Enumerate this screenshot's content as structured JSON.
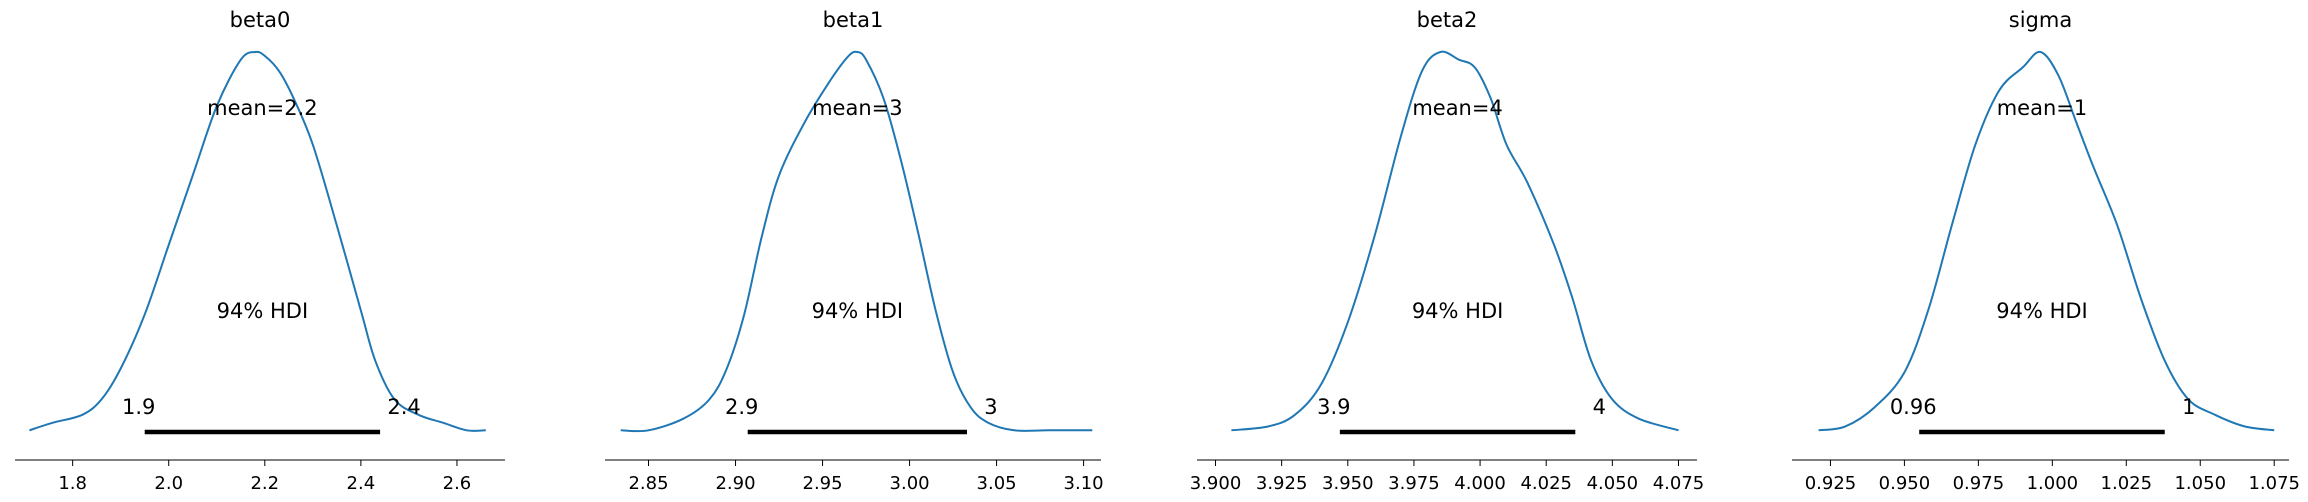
{
  "chart_data": [
    {
      "type": "density",
      "title": "beta0",
      "mean_label": "mean=2.2",
      "hdi_label": "94% HDI",
      "hdi_low_label": "1.9",
      "hdi_high_label": "2.4",
      "hdi": [
        1.95,
        2.44
      ],
      "xlim": [
        1.68,
        2.7
      ],
      "xticks": [
        1.8,
        2.0,
        2.2,
        2.4,
        2.6
      ],
      "xtick_labels": [
        "1.8",
        "2.0",
        "2.2",
        "2.4",
        "2.6"
      ],
      "density": {
        "x": [
          1.71,
          1.76,
          1.82,
          1.86,
          1.9,
          1.95,
          2.0,
          2.05,
          2.1,
          2.15,
          2.18,
          2.2,
          2.23,
          2.26,
          2.3,
          2.35,
          2.4,
          2.43,
          2.47,
          2.52,
          2.57,
          2.62,
          2.66
        ],
        "y": [
          0.02,
          0.04,
          0.06,
          0.1,
          0.18,
          0.32,
          0.5,
          0.68,
          0.86,
          0.98,
          1.0,
          0.99,
          0.95,
          0.88,
          0.76,
          0.55,
          0.33,
          0.2,
          0.1,
          0.06,
          0.04,
          0.02,
          0.02
        ]
      }
    },
    {
      "type": "density",
      "title": "beta1",
      "mean_label": "mean=3",
      "hdi_label": "94% HDI",
      "hdi_low_label": "2.9",
      "hdi_high_label": "3",
      "hdi": [
        2.907,
        3.033
      ],
      "xlim": [
        2.825,
        3.11
      ],
      "xticks": [
        2.85,
        2.9,
        2.95,
        3.0,
        3.05,
        3.1
      ],
      "xtick_labels": [
        "2.85",
        "2.90",
        "2.95",
        "3.00",
        "3.05",
        "3.10"
      ],
      "density": {
        "x": [
          2.834,
          2.85,
          2.87,
          2.885,
          2.895,
          2.905,
          2.915,
          2.925,
          2.94,
          2.955,
          2.965,
          2.97,
          2.975,
          2.985,
          2.995,
          3.005,
          3.015,
          3.025,
          3.035,
          3.045,
          3.06,
          3.08,
          3.105
        ],
        "y": [
          0.02,
          0.02,
          0.05,
          0.1,
          0.18,
          0.32,
          0.52,
          0.68,
          0.82,
          0.93,
          0.99,
          1.0,
          0.98,
          0.88,
          0.72,
          0.53,
          0.33,
          0.17,
          0.08,
          0.04,
          0.02,
          0.02,
          0.02
        ]
      }
    },
    {
      "type": "density",
      "title": "beta2",
      "mean_label": "mean=4",
      "hdi_label": "94% HDI",
      "hdi_low_label": "3.9",
      "hdi_high_label": "4",
      "hdi": [
        3.947,
        4.036
      ],
      "xlim": [
        3.893,
        4.082
      ],
      "xticks": [
        3.9,
        3.925,
        3.95,
        3.975,
        4.0,
        4.025,
        4.05,
        4.075
      ],
      "xtick_labels": [
        "3.900",
        "3.925",
        "3.950",
        "3.975",
        "4.000",
        "4.025",
        "4.050",
        "4.075"
      ],
      "density": {
        "x": [
          3.906,
          3.92,
          3.93,
          3.94,
          3.95,
          3.96,
          3.97,
          3.978,
          3.985,
          3.992,
          3.998,
          4.004,
          4.01,
          4.018,
          4.028,
          4.035,
          4.042,
          4.05,
          4.06,
          4.075
        ],
        "y": [
          0.02,
          0.03,
          0.06,
          0.14,
          0.3,
          0.52,
          0.78,
          0.95,
          1.0,
          0.98,
          0.96,
          0.88,
          0.76,
          0.66,
          0.5,
          0.36,
          0.2,
          0.1,
          0.05,
          0.02
        ]
      }
    },
    {
      "type": "density",
      "title": "sigma",
      "mean_label": "mean=1",
      "hdi_label": "94% HDI",
      "hdi_low_label": "0.96",
      "hdi_high_label": "1",
      "hdi": [
        0.955,
        1.038
      ],
      "xlim": [
        0.912,
        1.08
      ],
      "xticks": [
        0.925,
        0.95,
        0.975,
        1.0,
        1.025,
        1.05,
        1.075
      ],
      "xtick_labels": [
        "0.925",
        "0.950",
        "0.975",
        "1.000",
        "1.025",
        "1.050",
        "1.075"
      ],
      "density": {
        "x": [
          0.921,
          0.93,
          0.94,
          0.95,
          0.958,
          0.966,
          0.974,
          0.982,
          0.99,
          0.996,
          1.002,
          1.008,
          1.014,
          1.022,
          1.03,
          1.038,
          1.046,
          1.055,
          1.065,
          1.075
        ],
        "y": [
          0.02,
          0.03,
          0.08,
          0.17,
          0.33,
          0.55,
          0.76,
          0.9,
          0.96,
          1.0,
          0.94,
          0.82,
          0.7,
          0.55,
          0.36,
          0.2,
          0.1,
          0.06,
          0.03,
          0.02
        ]
      }
    }
  ],
  "style": {
    "line_color": "#1f77b4",
    "hdi_color": "#000000",
    "axis_color": "#808080"
  }
}
